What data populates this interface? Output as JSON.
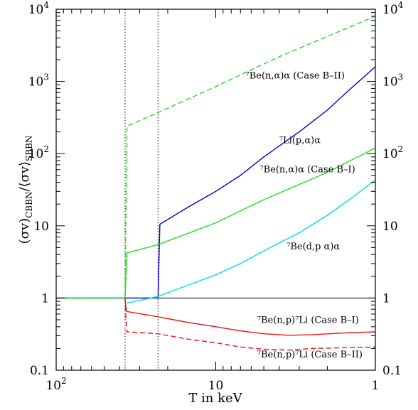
{
  "chart_data": {
    "type": "line",
    "title": "",
    "xlabel": "T in keV",
    "ylabel": "(σv)_CBBN/⟨σv⟩_SBBN",
    "xscale": "log",
    "yscale": "log",
    "xlim": [
      100,
      1
    ],
    "ylim": [
      0.1,
      10000
    ],
    "x_ticks": [
      {
        "value": 100,
        "mant": "10",
        "exp": "2"
      },
      {
        "value": 10,
        "mant": "10",
        "exp": ""
      },
      {
        "value": 1,
        "mant": "1",
        "exp": ""
      }
    ],
    "y_ticks": [
      {
        "value": 0.1,
        "mant": "0.1",
        "exp": ""
      },
      {
        "value": 1,
        "mant": "1",
        "exp": ""
      },
      {
        "value": 10,
        "mant": "10",
        "exp": ""
      },
      {
        "value": 100,
        "mant": "10",
        "exp": "2"
      },
      {
        "value": 1000,
        "mant": "10",
        "exp": "3"
      },
      {
        "value": 10000,
        "mant": "10",
        "exp": "4"
      }
    ],
    "vlines": [
      37,
      23
    ],
    "hline": 1,
    "series": [
      {
        "key": "be_n_alpha_b2",
        "color": "#22dd22",
        "dash": "dashed",
        "points": [
          [
            100,
            1
          ],
          [
            37,
            1
          ],
          [
            36,
            240
          ],
          [
            23,
            370
          ],
          [
            10,
            850
          ],
          [
            4,
            2200
          ],
          [
            1,
            8000
          ]
        ]
      },
      {
        "key": "li_p_alpha",
        "color": "#0000cc",
        "dash": "solid",
        "points": [
          [
            100,
            1
          ],
          [
            23,
            1
          ],
          [
            22.4,
            10.5
          ],
          [
            15,
            18
          ],
          [
            10,
            30
          ],
          [
            7,
            50
          ],
          [
            5,
            90
          ],
          [
            3,
            200
          ],
          [
            2,
            400
          ],
          [
            1.5,
            720
          ],
          [
            1,
            1600
          ]
        ]
      },
      {
        "key": "be_n_alpha_b1",
        "color": "#22dd22",
        "dash": "solid",
        "points": [
          [
            100,
            1
          ],
          [
            37,
            1
          ],
          [
            36,
            4.2
          ],
          [
            23,
            5.5
          ],
          [
            10,
            11
          ],
          [
            5,
            23
          ],
          [
            2,
            55
          ],
          [
            1,
            120
          ]
        ]
      },
      {
        "key": "be_dp_alpha",
        "color": "#00e0e0",
        "dash": "solid",
        "points": [
          [
            36,
            0.85
          ],
          [
            23,
            1.05
          ],
          [
            15,
            1.5
          ],
          [
            10,
            2.1
          ],
          [
            7,
            3
          ],
          [
            5,
            4.5
          ],
          [
            3,
            8
          ],
          [
            2,
            14
          ],
          [
            1.5,
            22
          ],
          [
            1,
            43
          ]
        ]
      },
      {
        "key": "be_np_li_b1",
        "color": "#ee1111",
        "dash": "solid",
        "points": [
          [
            37,
            1
          ],
          [
            36.5,
            0.72
          ],
          [
            36,
            0.65
          ],
          [
            23,
            0.55
          ],
          [
            15,
            0.46
          ],
          [
            10,
            0.4
          ],
          [
            7,
            0.35
          ],
          [
            5,
            0.32
          ],
          [
            3.5,
            0.305
          ],
          [
            2.5,
            0.31
          ],
          [
            1.5,
            0.33
          ],
          [
            1,
            0.34
          ]
        ]
      },
      {
        "key": "be_np_li_b2",
        "color": "#ee1111",
        "dash": "dashed",
        "points": [
          [
            37,
            1
          ],
          [
            36.5,
            0.5
          ],
          [
            36,
            0.34
          ],
          [
            23,
            0.32
          ],
          [
            15,
            0.27
          ],
          [
            10,
            0.24
          ],
          [
            7,
            0.21
          ],
          [
            5,
            0.195
          ],
          [
            3.5,
            0.19
          ],
          [
            2.5,
            0.2
          ],
          [
            1.5,
            0.205
          ],
          [
            1,
            0.21
          ]
        ]
      }
    ],
    "annotations": [
      {
        "key": "a1",
        "text": "⁷Be(n,α)α (Case B–II)",
        "x": 6.5,
        "y": 1100
      },
      {
        "key": "a2",
        "text": "⁷Li(p,α)α",
        "x": 4.0,
        "y": 140
      },
      {
        "key": "a3",
        "text": "⁷Be(n,α)α (Case B–I)",
        "x": 5.3,
        "y": 55
      },
      {
        "key": "a4",
        "text": "⁷Be(d,p α)α",
        "x": 3.6,
        "y": 4.7
      },
      {
        "key": "a5",
        "text": "⁷Be(n,p)⁷Li (Case B–I)",
        "x": 5.5,
        "y": 0.45
      },
      {
        "key": "a6",
        "text": "⁷Be(n,p)⁷Li (Case B–II)",
        "x": 5.5,
        "y": 0.15
      }
    ]
  }
}
